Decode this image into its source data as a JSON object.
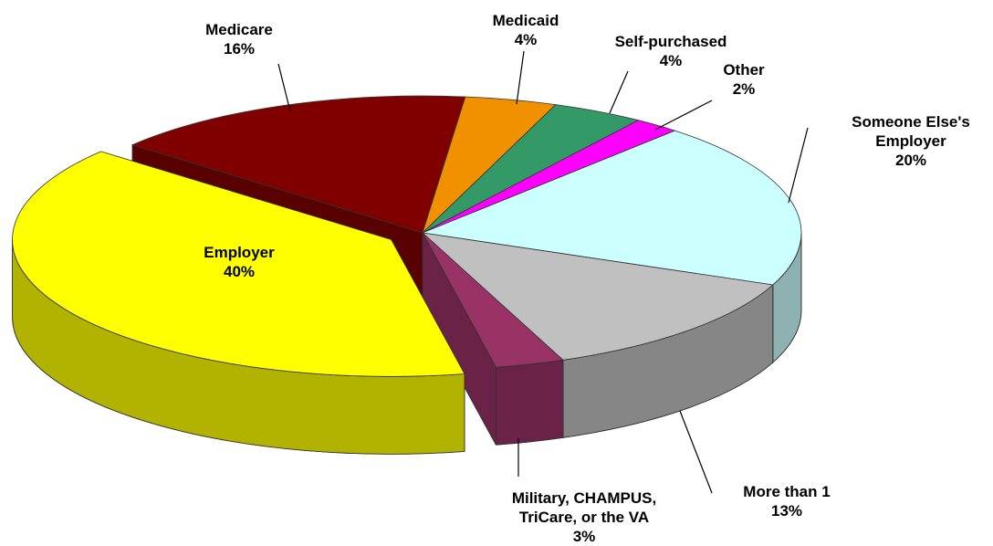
{
  "chart_data": {
    "type": "pie",
    "categories": [
      "Medicare",
      "Medicaid",
      "Self-purchased",
      "Other",
      "Someone Else's Employer",
      "More than 1",
      "Military, CHAMPUS, TriCare, or the VA",
      "Employer"
    ],
    "values": [
      16,
      4,
      4,
      2,
      20,
      13,
      3,
      40
    ],
    "value_labels": [
      "16%",
      "4%",
      "4%",
      "2%",
      "20%",
      "13%",
      "3%",
      "40%"
    ],
    "colors": [
      "#800000",
      "#f29100",
      "#339966",
      "#ff00ff",
      "#ccffff",
      "#c0c0c0",
      "#993366",
      "#ffff00"
    ]
  }
}
